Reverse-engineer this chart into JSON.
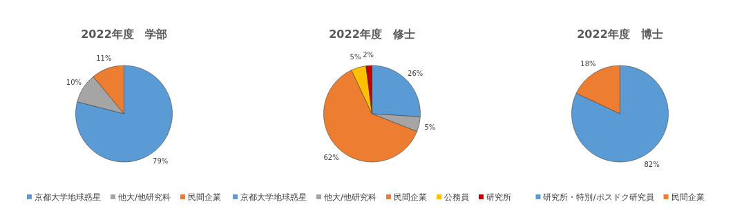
{
  "chart_data": [
    {
      "type": "pie",
      "title": "2022年度　学部",
      "categories": [
        "京都大学地球惑星",
        "他大/他研究科",
        "民間企業"
      ],
      "values": [
        79,
        10,
        11
      ],
      "value_labels": [
        "79%",
        "10%",
        "11%"
      ],
      "colors": [
        "#5b9bd5",
        "#a5a5a5",
        "#ed7d31"
      ],
      "legend": "bottom"
    },
    {
      "type": "pie",
      "title": "2022年度　修士",
      "categories": [
        "京都大学地球惑星",
        "他大/他研究科",
        "民間企業",
        "公務員",
        "研究所"
      ],
      "values": [
        26,
        5,
        62,
        5,
        2
      ],
      "value_labels": [
        "26%",
        "5%",
        "62%",
        "5%",
        "2%"
      ],
      "colors": [
        "#5b9bd5",
        "#a5a5a5",
        "#ed7d31",
        "#ffc000",
        "#c00000"
      ],
      "legend": "bottom"
    },
    {
      "type": "pie",
      "title": "2022年度　博士",
      "categories": [
        "研究所・特別/ポスドク研究員",
        "民間企業"
      ],
      "values": [
        82,
        18
      ],
      "value_labels": [
        "82%",
        "18%"
      ],
      "colors": [
        "#5b9bd5",
        "#ed7d31"
      ],
      "legend": "bottom"
    }
  ]
}
